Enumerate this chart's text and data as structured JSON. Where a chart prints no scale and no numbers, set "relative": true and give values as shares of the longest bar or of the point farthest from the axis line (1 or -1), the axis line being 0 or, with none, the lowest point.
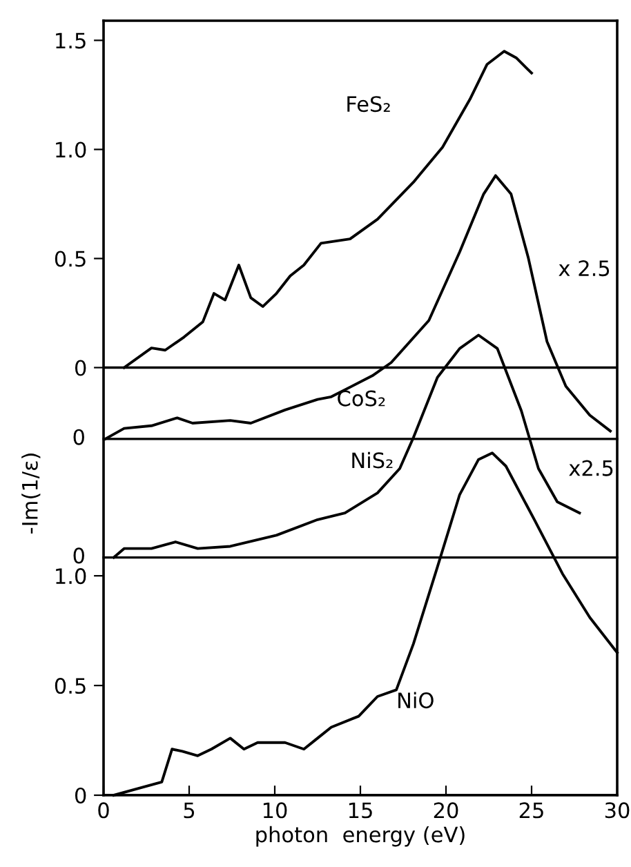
{
  "chart_data": [
    {
      "type": "line",
      "xlim": [
        0,
        30
      ],
      "ylim": [
        -1.96,
        1.59
      ],
      "yticks": [
        0,
        0.5,
        {
          "value": 1.0,
          "label": "1.0"
        },
        1.5
      ],
      "tick_labels": "y",
      "ref_lines": [
        {
          "axis": "y",
          "value": 0,
          "color": "#000000"
        }
      ],
      "series": [
        {
          "name": "FeS₂",
          "color": "#000000",
          "x": [
            1.2,
            2.8,
            3.6,
            4.7,
            5.8,
            6.45,
            7.1,
            7.9,
            8.6,
            9.3,
            10.1,
            10.9,
            11.7,
            12.7,
            14.4,
            16.0,
            18.1,
            19.8,
            21.4,
            22.4,
            23.4,
            24.1,
            25.0
          ],
          "values": [
            0,
            0.09,
            0.08,
            0.14,
            0.21,
            0.34,
            0.31,
            0.47,
            0.32,
            0.28,
            0.34,
            0.42,
            0.47,
            0.57,
            0.59,
            0.68,
            0.85,
            1.01,
            1.23,
            1.39,
            1.45,
            1.42,
            1.35
          ]
        }
      ]
    },
    {
      "type": "line",
      "xlim": [
        0,
        30
      ],
      "relative": true,
      "tick_labels": false,
      "annotations": [
        "0",
        "x 2.5"
      ],
      "series": [
        {
          "name": "CoS₂",
          "color": "#000000",
          "x": [
            0.1,
            1.2,
            2.8,
            4.3,
            5.2,
            7.4,
            8.6,
            10.6,
            12.5,
            13.3,
            15.7,
            16.8,
            19.0,
            20.8,
            22.2,
            22.9,
            23.8,
            24.8,
            25.9,
            27.0,
            28.4,
            29.6
          ],
          "values": [
            0,
            0.04,
            0.05,
            0.08,
            0.06,
            0.07,
            0.06,
            0.11,
            0.15,
            0.16,
            0.24,
            0.29,
            0.45,
            0.71,
            0.93,
            1,
            0.93,
            0.69,
            0.37,
            0.2,
            0.09,
            0.03
          ]
        }
      ]
    },
    {
      "type": "line",
      "xlim": [
        0,
        30
      ],
      "relative": true,
      "tick_labels": false,
      "annotations": [
        "0",
        "x2.5"
      ],
      "series": [
        {
          "name": "NiS₂",
          "color": "#000000",
          "x": [
            0.6,
            1.2,
            2.8,
            4.2,
            5.5,
            7.4,
            10.1,
            12.5,
            14.1,
            16.0,
            17.3,
            18.1,
            19.5,
            20.8,
            21.9,
            23.0,
            24.4,
            25.4,
            26.5,
            27.8
          ],
          "values": [
            0,
            0.04,
            0.04,
            0.07,
            0.04,
            0.05,
            0.1,
            0.17,
            0.2,
            0.29,
            0.4,
            0.54,
            0.81,
            0.94,
            1,
            0.94,
            0.66,
            0.4,
            0.25,
            0.2
          ]
        }
      ]
    },
    {
      "type": "line",
      "xlim": [
        0,
        30
      ],
      "ylim": [
        0,
        3.53
      ],
      "xticks": [
        0,
        5,
        10,
        15,
        20,
        25,
        30
      ],
      "yticks": [
        0,
        0.5,
        {
          "value": 1.0,
          "label": "1.0"
        }
      ],
      "xlabel": "photon  energy (eV)",
      "ylabel": "-Im(1/ε)",
      "ref_lines": [
        {
          "axis": "y",
          "value": 0,
          "color": "#000000"
        }
      ],
      "series": [
        {
          "name": "NiO",
          "color": "#000000",
          "x": [
            0.6,
            2.0,
            3.4,
            4.0,
            4.6,
            5.5,
            6.3,
            7.4,
            8.2,
            9.0,
            10.6,
            11.7,
            12.5,
            13.3,
            14.9,
            16.0,
            17.1,
            18.1,
            19.5,
            20.8,
            21.9,
            22.7,
            23.5,
            25.2,
            26.8,
            28.4,
            30.0
          ],
          "values": [
            0,
            0.03,
            0.06,
            0.21,
            0.2,
            0.18,
            0.21,
            0.26,
            0.21,
            0.24,
            0.24,
            0.21,
            0.26,
            0.31,
            0.36,
            0.45,
            0.48,
            0.69,
            1.04,
            1.37,
            1.53,
            1.56,
            1.5,
            1.25,
            1.01,
            0.81,
            0.65
          ]
        }
      ]
    }
  ]
}
